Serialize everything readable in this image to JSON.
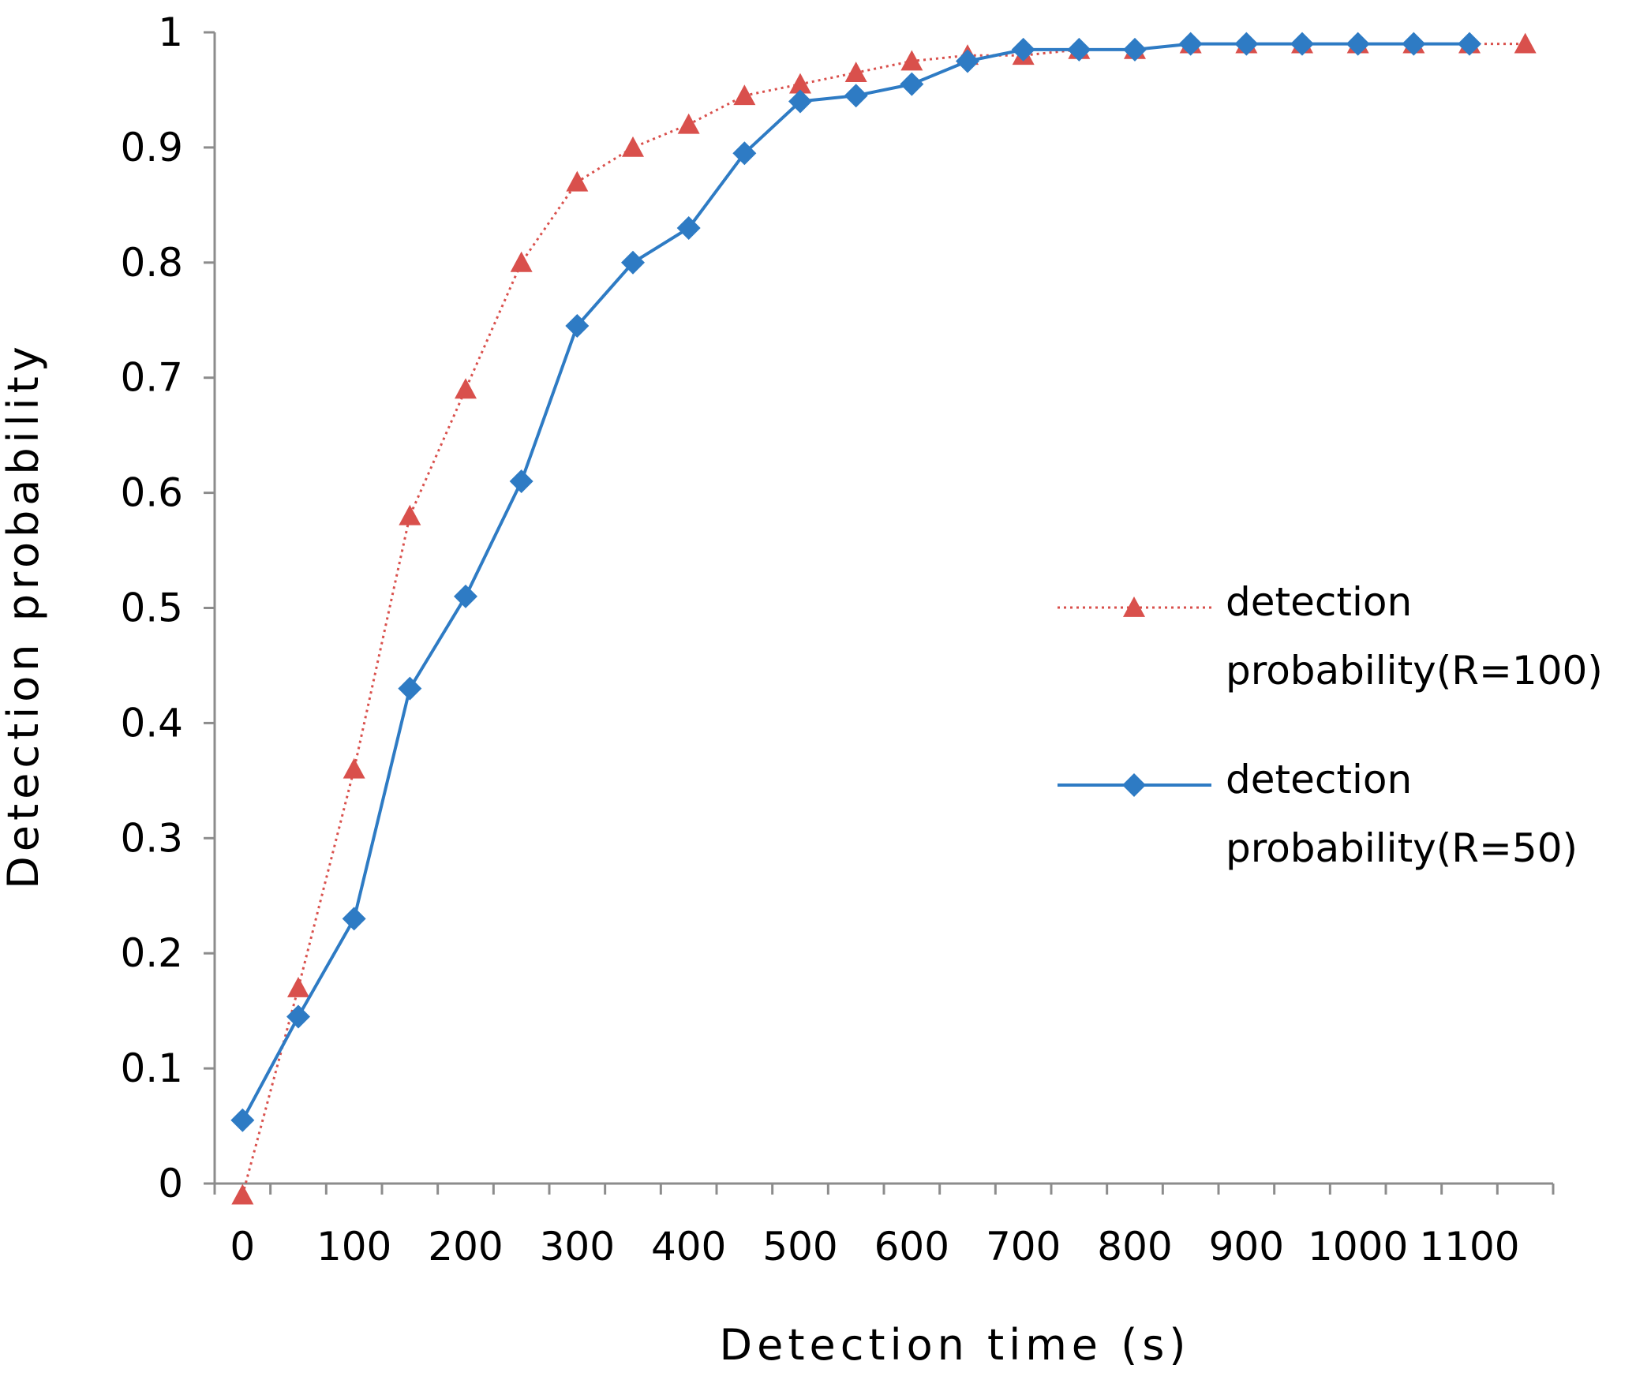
{
  "chart_data": {
    "type": "line",
    "title": "",
    "xlabel": "Detection  time  (s)",
    "ylabel": "Detection  probability",
    "xlim": [
      -25,
      1175
    ],
    "ylim": [
      0,
      1
    ],
    "x_ticks": [
      0,
      100,
      200,
      300,
      400,
      500,
      600,
      700,
      800,
      900,
      1000,
      1100
    ],
    "x_tick_labels": [
      "0",
      "100",
      "200",
      "300",
      "400",
      "500",
      "600",
      "700",
      "800",
      "900",
      "1000",
      "1100"
    ],
    "y_ticks": [
      0,
      0.1,
      0.2,
      0.3,
      0.4,
      0.5,
      0.6,
      0.7,
      0.8,
      0.9,
      1
    ],
    "y_tick_labels": [
      "0",
      "0.1",
      "0.2",
      "0.3",
      "0.4",
      "0.5",
      "0.6",
      "0.7",
      "0.8",
      "0.9",
      "1"
    ],
    "grid": false,
    "legend_position": "right",
    "x": [
      0,
      50,
      100,
      150,
      200,
      250,
      300,
      350,
      400,
      450,
      500,
      550,
      600,
      650,
      700,
      750,
      800,
      850,
      900,
      950,
      1000,
      1050,
      1100,
      1150
    ],
    "series": [
      {
        "name": "detection probability(R=100)",
        "legend_lines": [
          "detection",
          "probability(R=100)"
        ],
        "color": "#d9504c",
        "style": "dotted",
        "marker": "triangle",
        "values": [
          -0.01,
          0.17,
          0.36,
          0.58,
          0.69,
          0.8,
          0.87,
          0.9,
          0.92,
          0.945,
          0.955,
          0.965,
          0.975,
          0.98,
          0.98,
          0.985,
          0.985,
          0.99,
          0.99,
          0.99,
          0.99,
          0.99,
          0.99,
          0.99
        ]
      },
      {
        "name": "detection probability(R=50)",
        "legend_lines": [
          "detection",
          "probability(R=50)"
        ],
        "color": "#2e7bc4",
        "style": "solid",
        "marker": "diamond",
        "values": [
          null,
          0.145,
          0.23,
          0.43,
          0.51,
          0.61,
          0.745,
          0.8,
          0.83,
          0.895,
          0.94,
          0.945,
          0.955,
          0.975,
          0.985,
          0.985,
          0.985,
          0.99,
          0.99,
          0.99,
          0.99,
          0.99,
          0.99,
          null
        ],
        "first_point": {
          "x": 0,
          "y": 0.055
        }
      }
    ]
  }
}
